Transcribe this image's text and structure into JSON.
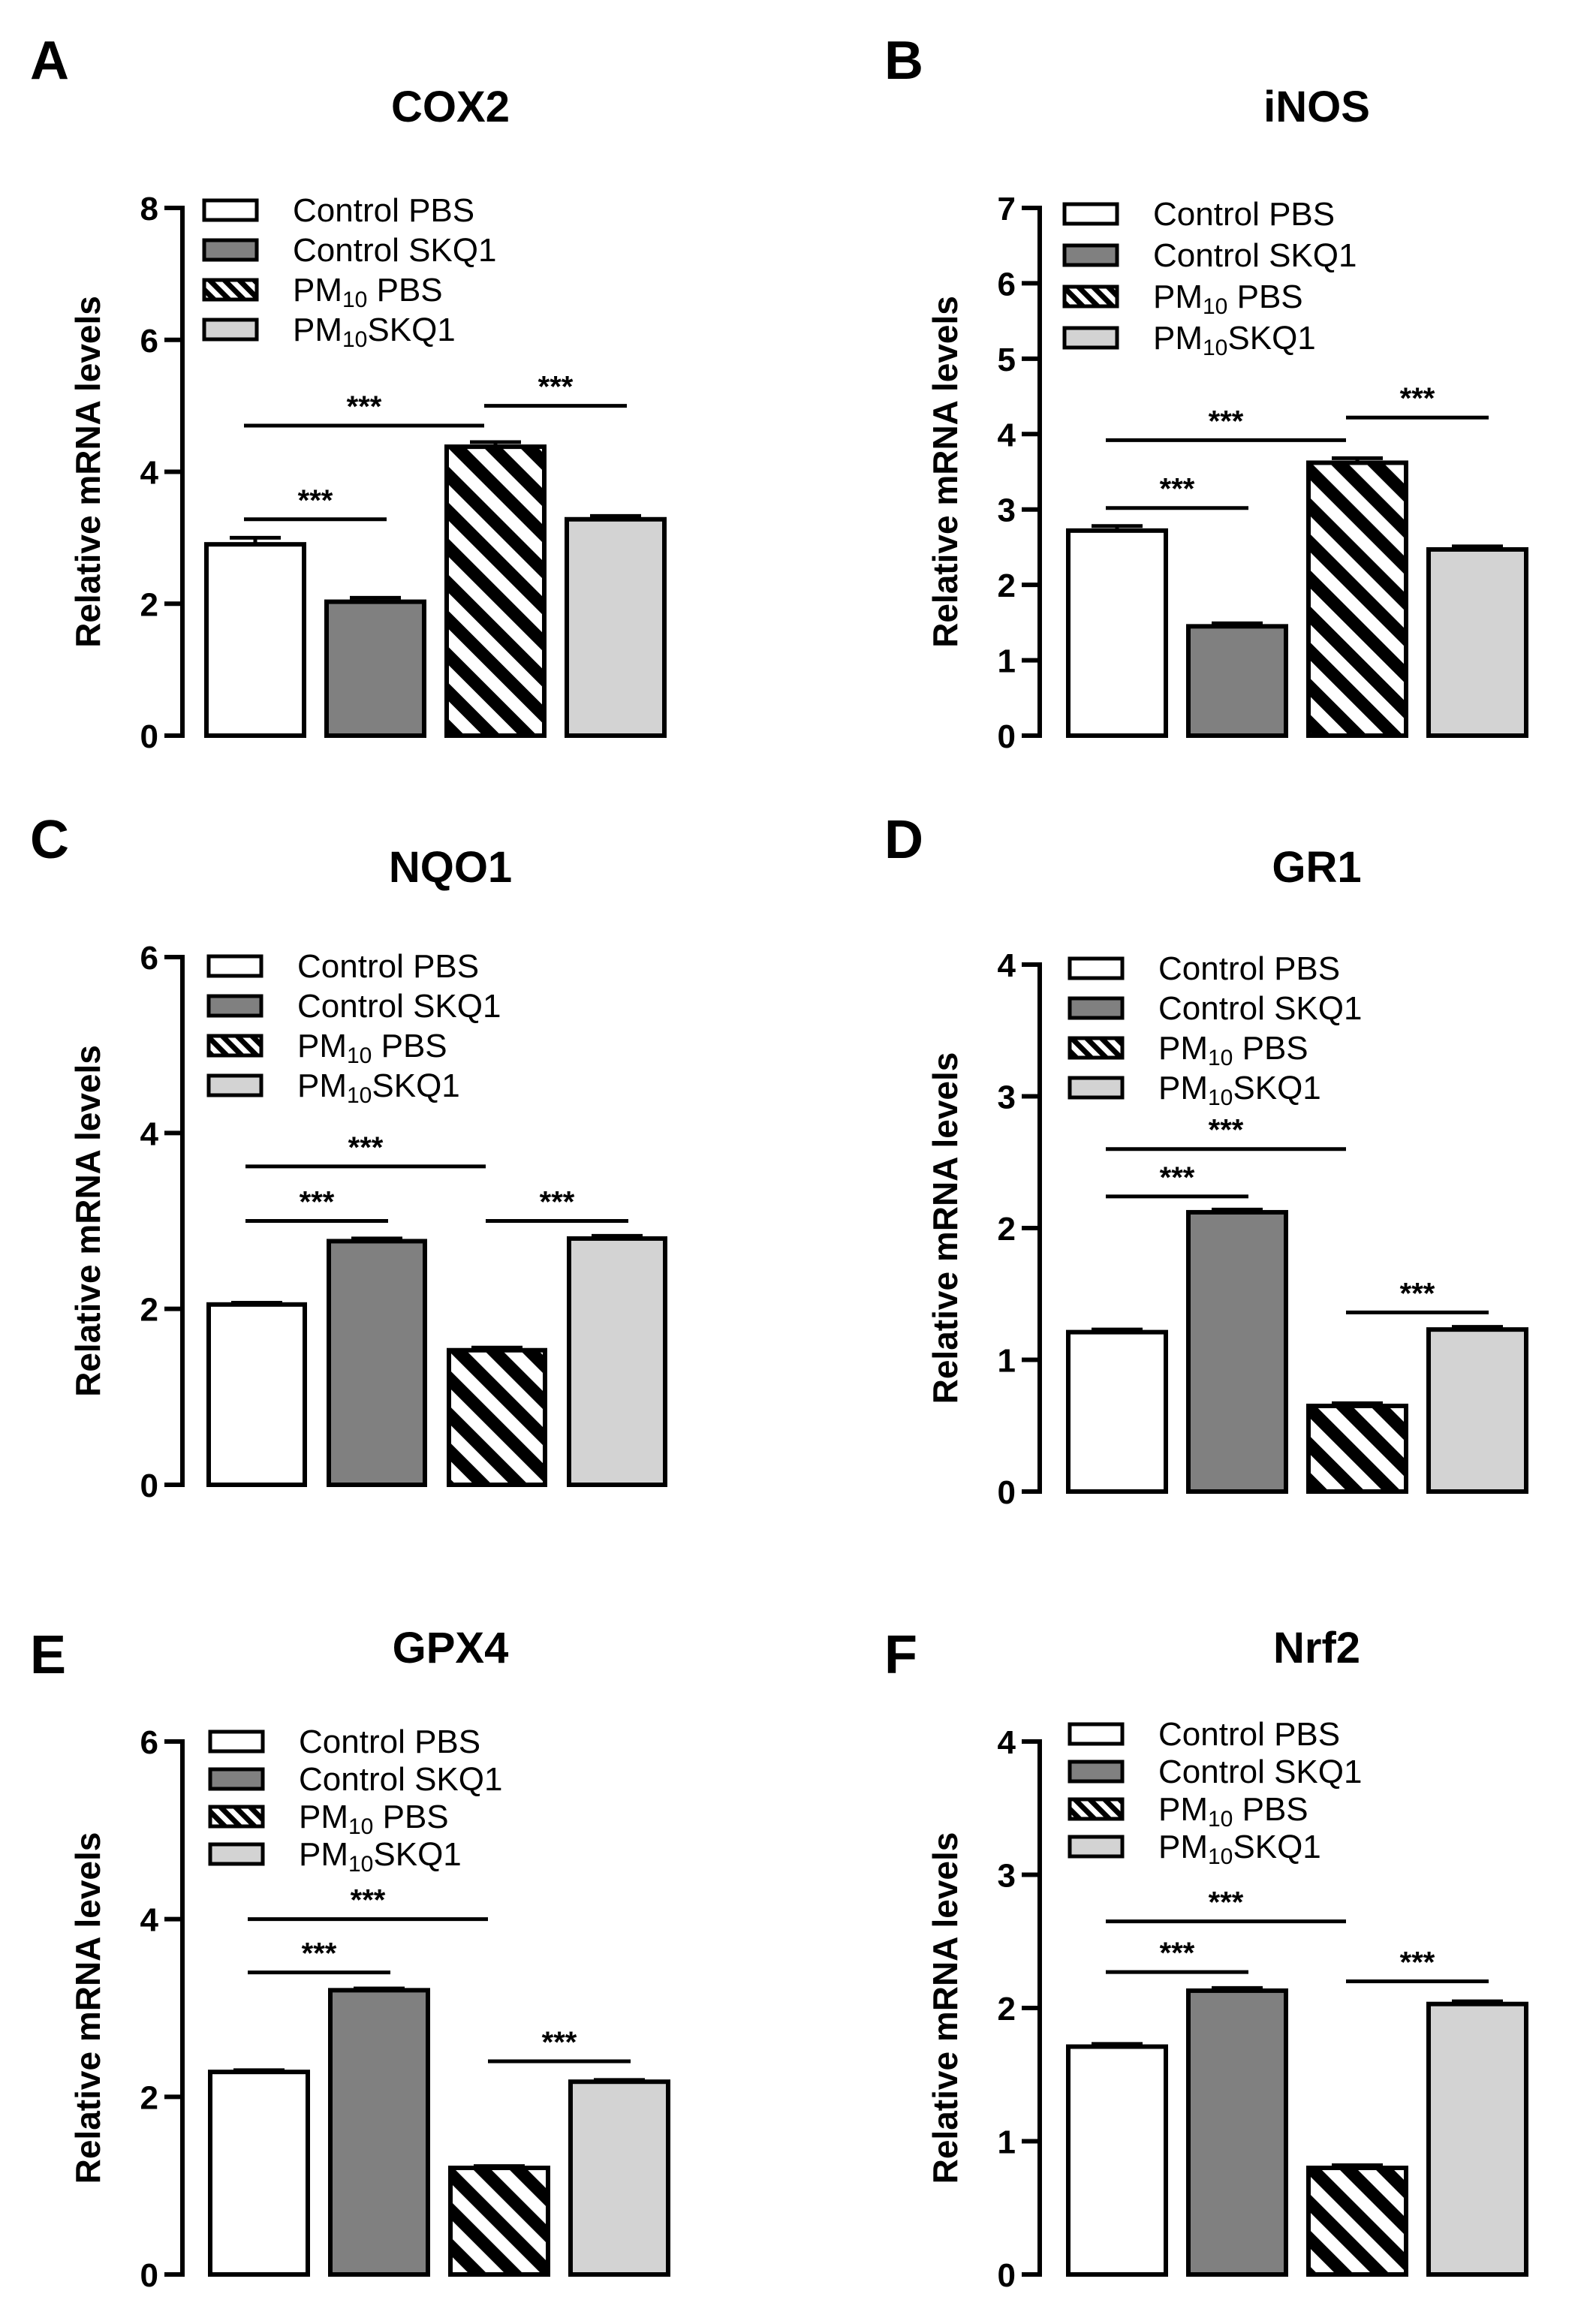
{
  "colors": {
    "control_pbs": "#ffffff",
    "control_skq1": "#808080",
    "pm10_pbs_stripe": "#000000",
    "pm10_skq1": "#d3d3d3",
    "axis": "#000000"
  },
  "legend": [
    {
      "pre": "Control PBS",
      "sub": "",
      "post": "",
      "fill": "white"
    },
    {
      "pre": "Control SKQ1",
      "sub": "",
      "post": "",
      "fill": "gray"
    },
    {
      "pre": "PM",
      "sub": "10",
      "post": " PBS",
      "fill": "hatch"
    },
    {
      "pre": "PM",
      "sub": "10",
      "post": "SKQ1",
      "fill": "light"
    }
  ],
  "chart_data": [
    {
      "panel": "A",
      "type": "bar",
      "title": "COX2",
      "ylabel": "Relative mRNA levels",
      "ylim": [
        0,
        8
      ],
      "yticks": [
        "0",
        "2",
        "4",
        "6",
        "8"
      ],
      "categories": [
        "Control PBS",
        "Control SKQ1",
        "PM10 PBS",
        "PM10SKQ1"
      ],
      "values": [
        2.9,
        2.03,
        4.38,
        3.28
      ],
      "errors": [
        0.1,
        0.06,
        0.07,
        0.05
      ],
      "significance": [
        {
          "from": 0,
          "to": 1,
          "y": 3.28,
          "label": "***"
        },
        {
          "from": 0,
          "to": 2,
          "y": 4.7,
          "label": "***"
        },
        {
          "from": 2,
          "to": 3,
          "y": 5.0,
          "label": "***"
        }
      ]
    },
    {
      "panel": "B",
      "type": "bar",
      "title": "iNOS",
      "ylabel": "Relative mRNA levels",
      "ylim": [
        0,
        7
      ],
      "yticks": [
        "0",
        "1",
        "2",
        "3",
        "4",
        "5",
        "6",
        "7"
      ],
      "categories": [
        "Control PBS",
        "Control SKQ1",
        "PM10 PBS",
        "PM10SKQ1"
      ],
      "values": [
        2.72,
        1.45,
        3.62,
        2.47
      ],
      "errors": [
        0.06,
        0.04,
        0.06,
        0.04
      ],
      "significance": [
        {
          "from": 0,
          "to": 1,
          "y": 3.02,
          "label": "***"
        },
        {
          "from": 0,
          "to": 2,
          "y": 3.92,
          "label": "***"
        },
        {
          "from": 2,
          "to": 3,
          "y": 4.22,
          "label": "***"
        }
      ]
    },
    {
      "panel": "C",
      "type": "bar",
      "title": "NQO1",
      "ylabel": "Relative mRNA levels",
      "ylim": [
        0,
        6
      ],
      "yticks": [
        "0",
        "2",
        "4",
        "6"
      ],
      "categories": [
        "Control PBS",
        "Control SKQ1",
        "PM10 PBS",
        "PM10SKQ1"
      ],
      "values": [
        2.05,
        2.77,
        1.53,
        2.8
      ],
      "errors": [
        0.02,
        0.03,
        0.03,
        0.03
      ],
      "significance": [
        {
          "from": 0,
          "to": 1,
          "y": 3.0,
          "label": "***"
        },
        {
          "from": 0,
          "to": 2,
          "y": 3.62,
          "label": "***"
        },
        {
          "from": 2,
          "to": 3,
          "y": 3.0,
          "label": "***"
        }
      ]
    },
    {
      "panel": "D",
      "type": "bar",
      "title": "GR1",
      "ylabel": "Relative mRNA levels",
      "ylim": [
        0,
        4
      ],
      "yticks": [
        "0",
        "1",
        "2",
        "3",
        "4"
      ],
      "categories": [
        "Control PBS",
        "Control SKQ1",
        "PM10 PBS",
        "PM10SKQ1"
      ],
      "values": [
        1.21,
        2.12,
        0.65,
        1.23
      ],
      "errors": [
        0.02,
        0.02,
        0.02,
        0.02
      ],
      "significance": [
        {
          "from": 0,
          "to": 1,
          "y": 2.24,
          "label": "***"
        },
        {
          "from": 0,
          "to": 2,
          "y": 2.6,
          "label": "***"
        },
        {
          "from": 2,
          "to": 3,
          "y": 1.36,
          "label": "***"
        }
      ]
    },
    {
      "panel": "E",
      "type": "bar",
      "title": "GPX4",
      "ylabel": "Relative mRNA levels",
      "ylim": [
        0,
        6
      ],
      "yticks": [
        "0",
        "2",
        "4",
        "6"
      ],
      "categories": [
        "Control PBS",
        "Control SKQ1",
        "PM10 PBS",
        "PM10SKQ1"
      ],
      "values": [
        2.28,
        3.2,
        1.2,
        2.17
      ],
      "errors": [
        0.02,
        0.02,
        0.02,
        0.02
      ],
      "significance": [
        {
          "from": 0,
          "to": 1,
          "y": 3.4,
          "label": "***"
        },
        {
          "from": 0,
          "to": 2,
          "y": 4.0,
          "label": "***"
        },
        {
          "from": 2,
          "to": 3,
          "y": 2.4,
          "label": "***"
        }
      ]
    },
    {
      "panel": "F",
      "type": "bar",
      "title": "Nrf2",
      "ylabel": "Relative mRNA levels",
      "ylim": [
        0,
        4
      ],
      "yticks": [
        "0",
        "1",
        "2",
        "3",
        "4"
      ],
      "categories": [
        "Control PBS",
        "Control SKQ1",
        "PM10 PBS",
        "PM10SKQ1"
      ],
      "values": [
        1.71,
        2.13,
        0.8,
        2.03
      ],
      "errors": [
        0.02,
        0.02,
        0.02,
        0.02
      ],
      "significance": [
        {
          "from": 0,
          "to": 1,
          "y": 2.27,
          "label": "***"
        },
        {
          "from": 0,
          "to": 2,
          "y": 2.65,
          "label": "***"
        },
        {
          "from": 2,
          "to": 3,
          "y": 2.2,
          "label": "***"
        }
      ]
    }
  ]
}
